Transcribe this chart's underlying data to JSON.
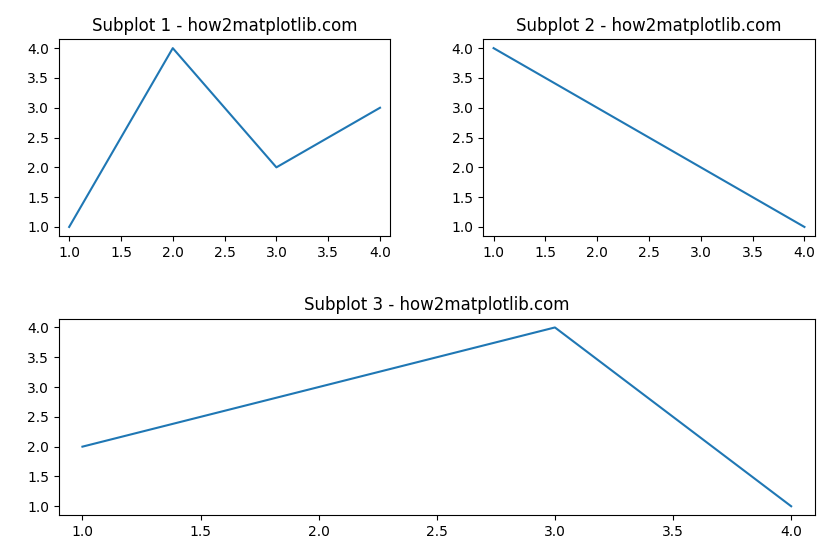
{
  "subplot1": {
    "x": [
      1,
      2,
      3,
      4
    ],
    "y": [
      1,
      4,
      2,
      3
    ],
    "title": "Subplot 1 - how2matplotlib.com",
    "color": "#1f77b4",
    "xticks": [
      1.0,
      1.5,
      2.0,
      2.5,
      3.0,
      3.5,
      4.0
    ],
    "yticks": [
      1.0,
      1.5,
      2.0,
      2.5,
      3.0,
      3.5,
      4.0
    ]
  },
  "subplot2": {
    "x": [
      1,
      4
    ],
    "y": [
      4,
      1
    ],
    "title": "Subplot 2 - how2matplotlib.com",
    "color": "#1f77b4",
    "xticks": [
      1.0,
      1.5,
      2.0,
      2.5,
      3.0,
      3.5,
      4.0
    ],
    "yticks": [
      1.0,
      1.5,
      2.0,
      2.5,
      3.0,
      3.5,
      4.0
    ]
  },
  "subplot3": {
    "x": [
      1,
      3,
      4
    ],
    "y": [
      2,
      4,
      1
    ],
    "title": "Subplot 3 - how2matplotlib.com",
    "color": "#1f77b4",
    "xticks": [
      1.0,
      1.5,
      2.0,
      2.5,
      3.0,
      3.5,
      4.0
    ],
    "yticks": [
      1.0,
      1.5,
      2.0,
      2.5,
      3.0,
      3.5,
      4.0
    ]
  },
  "figsize": [
    8.4,
    5.6
  ],
  "dpi": 100,
  "background_color": "#ffffff",
  "xlim": [
    0.9,
    4.1
  ],
  "ylim": [
    0.85,
    4.15
  ]
}
